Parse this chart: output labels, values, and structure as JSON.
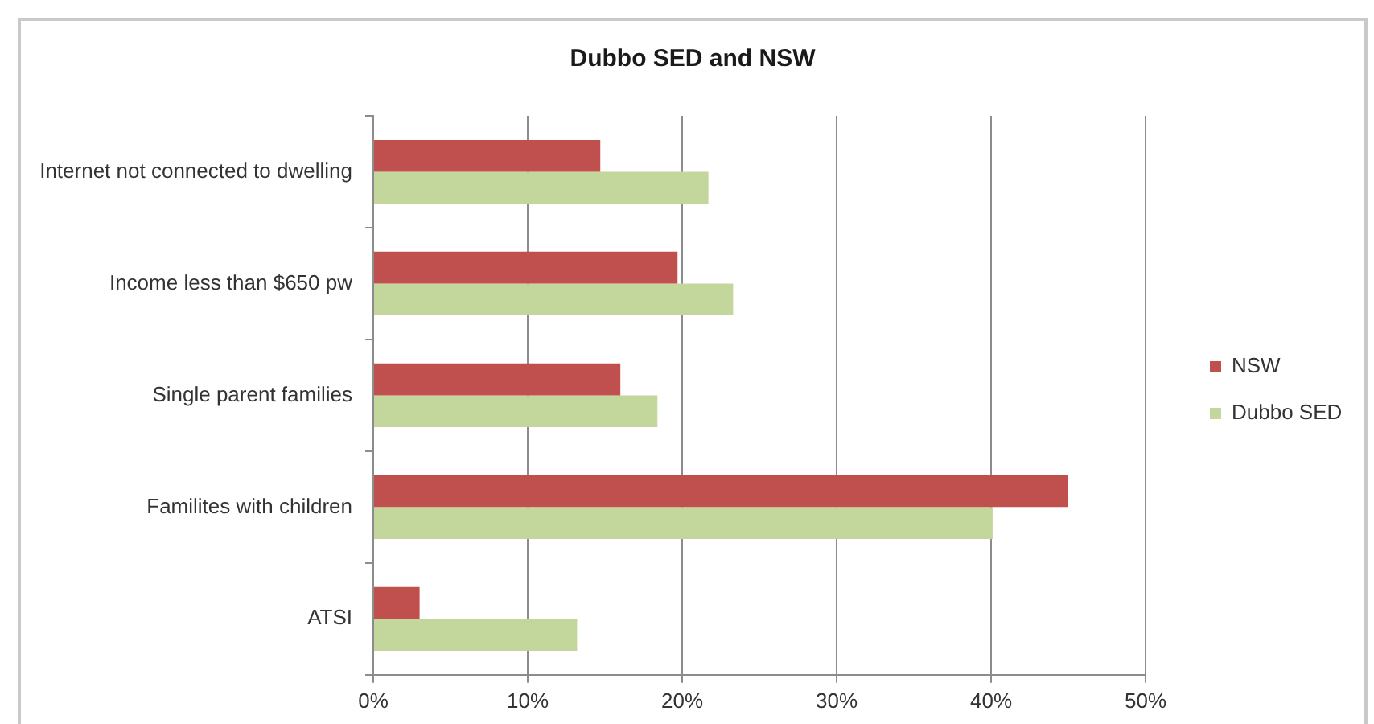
{
  "chart_data": {
    "type": "bar",
    "orientation": "horizontal",
    "title": "Dubbo SED and NSW",
    "categories": [
      "Internet not connected to dwelling",
      "Income less than $650 pw",
      "Single parent families",
      "Familites with children",
      "ATSI"
    ],
    "series": [
      {
        "name": "NSW",
        "color": "#c0504d",
        "values": [
          14.7,
          19.7,
          16.0,
          45.0,
          3.0
        ]
      },
      {
        "name": "Dubbo SED",
        "color": "#c3d69b",
        "values": [
          21.7,
          23.3,
          18.4,
          40.1,
          13.2
        ]
      }
    ],
    "xlim": [
      0,
      50
    ],
    "xticks": [
      {
        "value": 0,
        "label": "0%"
      },
      {
        "value": 10,
        "label": "10%"
      },
      {
        "value": 20,
        "label": "20%"
      },
      {
        "value": 30,
        "label": "30%"
      },
      {
        "value": 40,
        "label": "40%"
      },
      {
        "value": 50,
        "label": "50%"
      }
    ],
    "grid": "x",
    "legend": "right"
  }
}
